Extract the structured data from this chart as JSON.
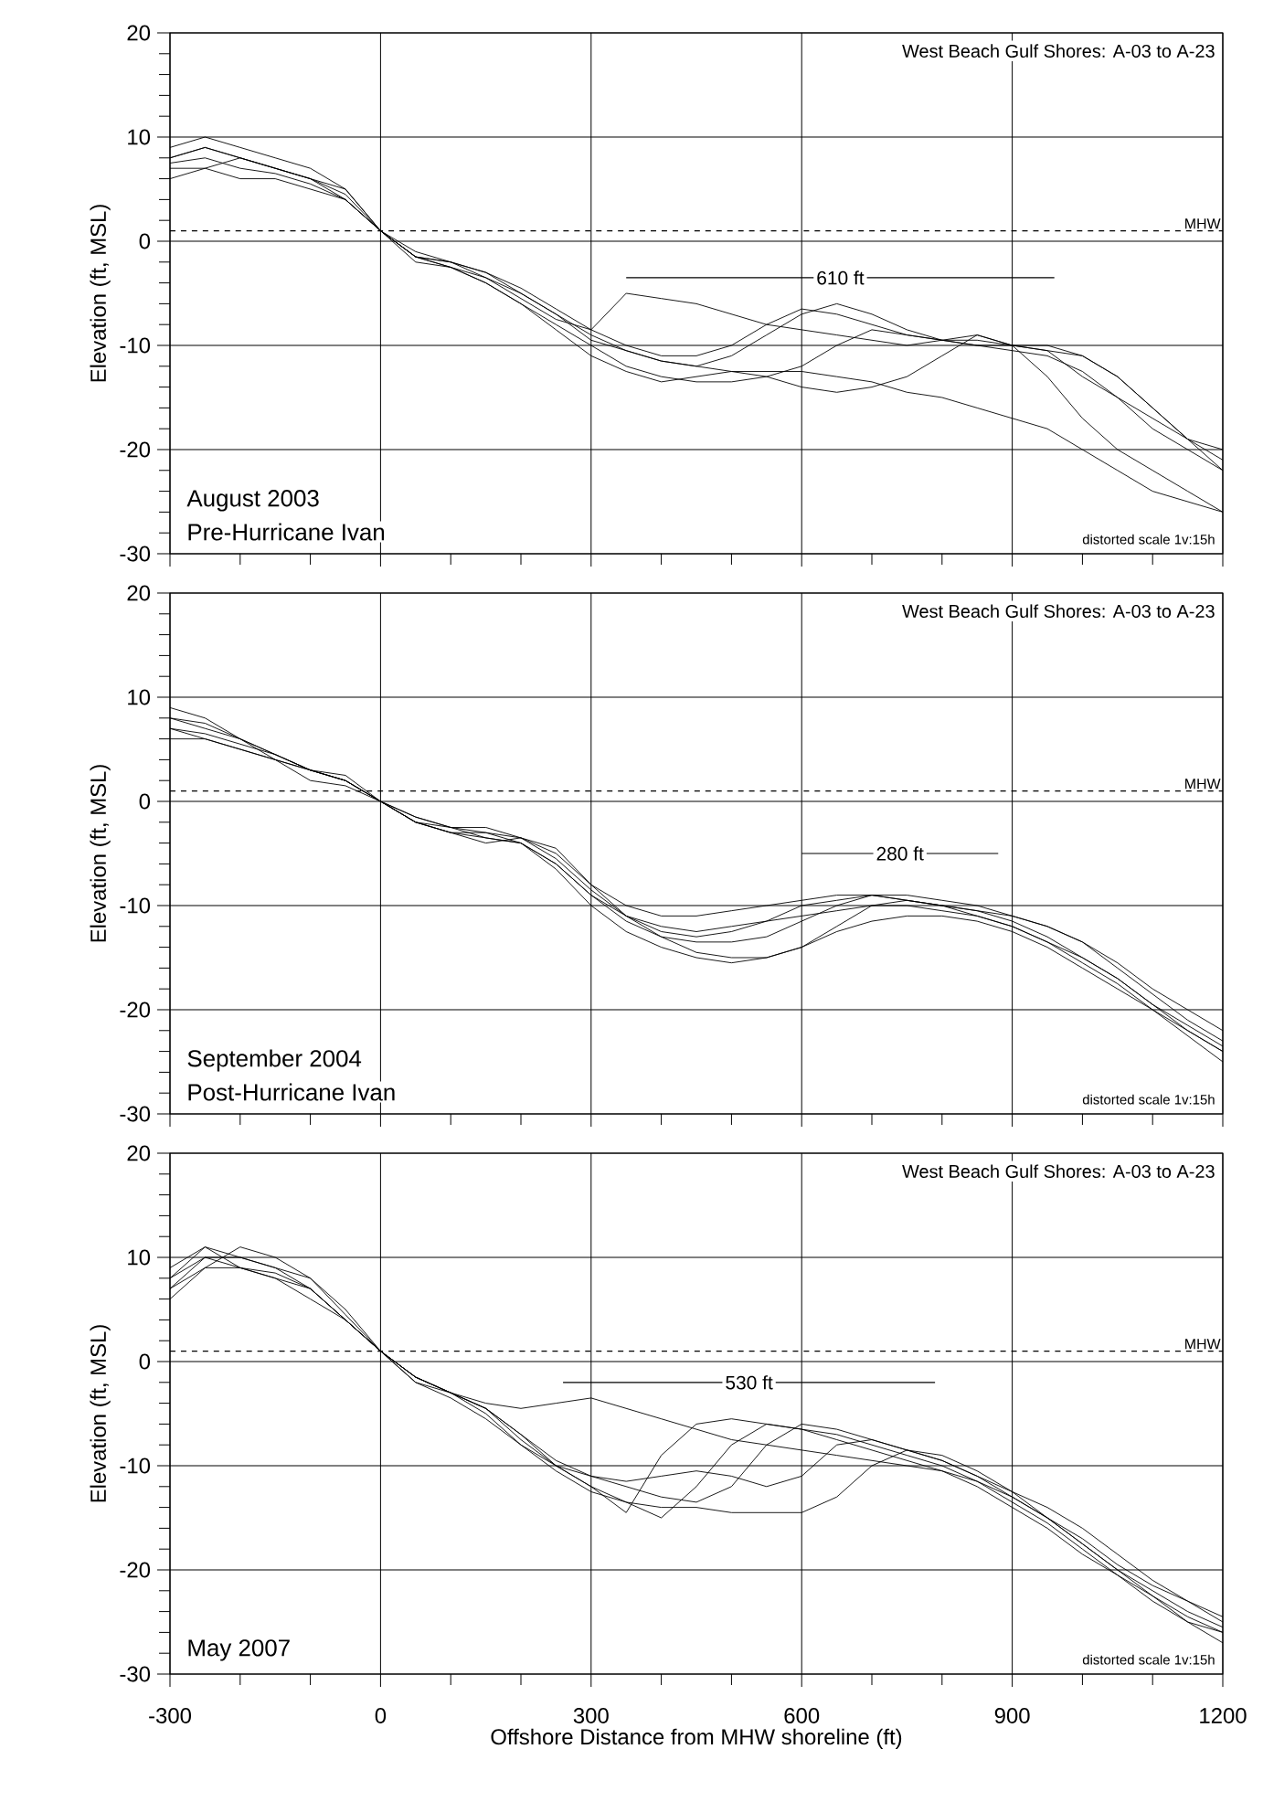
{
  "chart_data": [
    {
      "type": "line",
      "ylabel": "Elevation (ft, MSL)",
      "xlim": [
        -300,
        1200
      ],
      "ylim": [
        -30,
        20
      ],
      "xticks": [
        -300,
        0,
        300,
        600,
        900,
        1200
      ],
      "yticks": [
        -30,
        -20,
        -10,
        0,
        10,
        20
      ],
      "tick_labels": "y",
      "grid": true,
      "marker": "none",
      "line_style": "solid",
      "x": [
        -300,
        -250,
        -200,
        -150,
        -100,
        -50,
        0,
        50,
        100,
        150,
        200,
        250,
        300,
        350,
        400,
        450,
        500,
        550,
        600,
        650,
        700,
        750,
        800,
        850,
        900,
        950,
        1000,
        1050,
        1100,
        1150,
        1200
      ],
      "series": [
        {
          "color": "#000000",
          "values": [
            8,
            9,
            8,
            7,
            6,
            4,
            1,
            -1.5,
            -2.5,
            -3.5,
            -5.5,
            -7.5,
            -8.5,
            -5,
            -5.5,
            -6,
            -7,
            -8,
            -8.5,
            -9,
            -9.5,
            -10,
            -9.5,
            -9,
            -10,
            -10.5,
            -13,
            -15,
            -17,
            -19,
            -21
          ]
        },
        {
          "color": "#000000",
          "values": [
            7,
            7,
            6,
            6,
            5,
            4,
            1,
            -2,
            -2.5,
            -4,
            -6,
            -8,
            -10,
            -12,
            -13,
            -13.5,
            -13.5,
            -13,
            -12,
            -10,
            -8.5,
            -9,
            -9.5,
            -10,
            -10,
            -10,
            -11,
            -13,
            -16,
            -19,
            -22
          ]
        },
        {
          "color": "#000000",
          "values": [
            9,
            10,
            9,
            8,
            7,
            5,
            1,
            -1.5,
            -2,
            -3.5,
            -5,
            -7,
            -9.5,
            -10.5,
            -11.5,
            -12,
            -12.5,
            -13,
            -14,
            -14.5,
            -14,
            -13,
            -11,
            -9,
            -10,
            -13,
            -17,
            -20,
            -22,
            -24,
            -26
          ]
        },
        {
          "color": "#000000",
          "values": [
            6,
            7,
            8,
            7,
            6,
            5,
            1,
            -1.5,
            -2,
            -3,
            -4.5,
            -6.5,
            -8.5,
            -10,
            -11,
            -11,
            -10,
            -8,
            -6.5,
            -7,
            -8,
            -9,
            -9.5,
            -9.5,
            -10,
            -10.5,
            -11,
            -13,
            -16,
            -19,
            -20
          ]
        },
        {
          "color": "#000000",
          "values": [
            7.5,
            8,
            7,
            6.5,
            5.5,
            4,
            1,
            -1.5,
            -2.5,
            -4,
            -6,
            -8.5,
            -11,
            -12.5,
            -13.5,
            -13,
            -12.5,
            -12.5,
            -12.5,
            -13,
            -13.5,
            -14.5,
            -15,
            -16,
            -17,
            -18,
            -20,
            -22,
            -24,
            -25,
            -26
          ]
        },
        {
          "color": "#000000",
          "values": [
            8,
            9,
            8,
            7,
            6,
            4.5,
            1,
            -1,
            -2,
            -3,
            -5,
            -7,
            -9,
            -10.5,
            -11.5,
            -12,
            -11,
            -9,
            -7,
            -6,
            -7,
            -8.5,
            -9.5,
            -10,
            -10.5,
            -11,
            -12.5,
            -15,
            -18,
            -20,
            -22
          ]
        },
        {
          "type": "line",
          "color": "#000000",
          "x": [
            350,
            960
          ],
          "values": [
            -3.5,
            -3.5
          ]
        }
      ],
      "ref_lines": [
        {
          "axis": "y",
          "value": 1,
          "label": "MHW",
          "line_style": "dashed"
        }
      ],
      "annotations": [
        "West Beach Gulf Shores:  A-03 to A-23",
        "August 2003",
        "Pre-Hurricane Ivan",
        "distorted scale 1v:15h",
        {
          "text": "610 ft",
          "x": 655,
          "y": -3.5
        }
      ]
    },
    {
      "type": "line",
      "ylabel": "Elevation (ft, MSL)",
      "xlim": [
        -300,
        1200
      ],
      "ylim": [
        -30,
        20
      ],
      "xticks": [
        -300,
        0,
        300,
        600,
        900,
        1200
      ],
      "yticks": [
        -30,
        -20,
        -10,
        0,
        10,
        20
      ],
      "tick_labels": "y",
      "grid": true,
      "marker": "none",
      "line_style": "solid",
      "x": [
        -300,
        -250,
        -200,
        -150,
        -100,
        -50,
        0,
        50,
        100,
        150,
        200,
        250,
        300,
        350,
        400,
        450,
        500,
        550,
        600,
        650,
        700,
        750,
        800,
        850,
        900,
        950,
        1000,
        1050,
        1100,
        1150,
        1200
      ],
      "series": [
        {
          "color": "#000000",
          "values": [
            8,
            7,
            6,
            4.5,
            3,
            2,
            0,
            -2,
            -3,
            -3.5,
            -4,
            -6,
            -9,
            -11,
            -12.5,
            -13,
            -12.5,
            -11.5,
            -10,
            -9.5,
            -9,
            -9.5,
            -10,
            -10.5,
            -11,
            -12,
            -13.5,
            -16,
            -18.5,
            -21,
            -23
          ]
        },
        {
          "color": "#000000",
          "values": [
            7,
            6,
            5,
            4,
            3,
            2,
            0,
            -1.5,
            -2.5,
            -3,
            -3.5,
            -5,
            -8,
            -11,
            -13,
            -14.5,
            -15,
            -15,
            -14,
            -12.5,
            -11.5,
            -11,
            -11,
            -11.5,
            -12.5,
            -14,
            -16,
            -18,
            -20,
            -22,
            -24
          ]
        },
        {
          "color": "#000000",
          "values": [
            9,
            8,
            6,
            4.5,
            3,
            2.5,
            0,
            -2,
            -3,
            -4,
            -3.5,
            -4.5,
            -8,
            -10,
            -11,
            -11,
            -10.5,
            -10,
            -9.5,
            -9,
            -9,
            -9.5,
            -10,
            -10.5,
            -11.5,
            -13,
            -15,
            -17,
            -19.5,
            -22,
            -24
          ]
        },
        {
          "color": "#000000",
          "values": [
            6,
            6,
            5,
            4,
            2,
            1.5,
            0,
            -2,
            -3,
            -3,
            -4,
            -6.5,
            -10,
            -12.5,
            -14,
            -15,
            -15.5,
            -15,
            -14,
            -12,
            -10,
            -9.5,
            -10,
            -11,
            -12,
            -13.5,
            -15.5,
            -17.5,
            -20,
            -22.5,
            -25
          ]
        },
        {
          "color": "#000000",
          "values": [
            8,
            7.5,
            6,
            4,
            3,
            2,
            0,
            -2,
            -2.5,
            -3.5,
            -4,
            -6,
            -9,
            -11.5,
            -13,
            -13.5,
            -13.5,
            -13,
            -11.5,
            -10,
            -9,
            -9,
            -9.5,
            -10,
            -11,
            -12,
            -13.5,
            -15.5,
            -18,
            -20,
            -22
          ]
        },
        {
          "color": "#000000",
          "values": [
            7,
            6.5,
            5.5,
            4.5,
            3,
            2,
            0,
            -1.5,
            -2.5,
            -2.5,
            -3.5,
            -5.5,
            -8.5,
            -11,
            -12,
            -12.5,
            -12,
            -11.5,
            -11,
            -10.5,
            -10,
            -10,
            -10.5,
            -11,
            -12,
            -13.5,
            -15,
            -17,
            -19.5,
            -21.5,
            -23.5
          ]
        },
        {
          "type": "line",
          "color": "#000000",
          "x": [
            600,
            880
          ],
          "values": [
            -5,
            -5
          ]
        }
      ],
      "ref_lines": [
        {
          "axis": "y",
          "value": 1,
          "label": "MHW",
          "line_style": "dashed"
        }
      ],
      "annotations": [
        "West Beach Gulf Shores:  A-03 to A-23",
        "September 2004",
        "Post-Hurricane Ivan",
        "distorted scale 1v:15h",
        {
          "text": "280 ft",
          "x": 740,
          "y": -5
        }
      ]
    },
    {
      "type": "line",
      "ylabel": "Elevation (ft, MSL)",
      "xlabel": "Offshore Distance from MHW shoreline (ft)",
      "xlim": [
        -300,
        1200
      ],
      "ylim": [
        -30,
        20
      ],
      "xticks": [
        -300,
        0,
        300,
        600,
        900,
        1200
      ],
      "yticks": [
        -30,
        -20,
        -10,
        0,
        10,
        20
      ],
      "grid": true,
      "marker": "none",
      "line_style": "solid",
      "x": [
        -300,
        -250,
        -200,
        -150,
        -100,
        -50,
        0,
        50,
        100,
        150,
        200,
        250,
        300,
        350,
        400,
        450,
        500,
        550,
        600,
        650,
        700,
        750,
        800,
        850,
        900,
        950,
        1000,
        1050,
        1100,
        1150,
        1200
      ],
      "series": [
        {
          "color": "#000000",
          "values": [
            8,
            10,
            10,
            9,
            7,
            4,
            1,
            -1.5,
            -3,
            -4,
            -4.5,
            -4,
            -3.5,
            -4.5,
            -5.5,
            -6.5,
            -7.5,
            -8,
            -8.5,
            -9,
            -9.5,
            -10,
            -10.5,
            -11.5,
            -13,
            -15,
            -17,
            -19.5,
            -21.5,
            -23,
            -25
          ]
        },
        {
          "color": "#000000",
          "values": [
            7,
            10,
            9,
            8,
            7,
            4,
            1,
            -1.5,
            -3,
            -4.5,
            -7,
            -10,
            -12,
            -14.5,
            -9,
            -6,
            -5.5,
            -6,
            -6.5,
            -7.5,
            -8.5,
            -9.5,
            -10.5,
            -12,
            -14,
            -16,
            -18.5,
            -20.5,
            -22.5,
            -24.5,
            -26
          ]
        },
        {
          "color": "#000000",
          "values": [
            9,
            11,
            9,
            8.5,
            7,
            4,
            1,
            -2,
            -3,
            -5,
            -8,
            -10,
            -11,
            -12,
            -13,
            -13.5,
            -12,
            -8,
            -6,
            -6.5,
            -7.5,
            -8.5,
            -9.5,
            -11,
            -13,
            -15,
            -17.5,
            -20,
            -22,
            -24,
            -25.5
          ]
        },
        {
          "color": "#000000",
          "values": [
            6,
            9,
            11,
            10,
            8,
            5,
            1,
            -2,
            -3.5,
            -5.5,
            -8,
            -10.5,
            -12.5,
            -13.5,
            -14,
            -14,
            -14.5,
            -14.5,
            -14.5,
            -13,
            -10,
            -8.5,
            -9,
            -10.5,
            -12.5,
            -15,
            -17.5,
            -20,
            -22.5,
            -25,
            -27
          ]
        },
        {
          "color": "#000000",
          "values": [
            8,
            11,
            10,
            9,
            8,
            4.5,
            1,
            -1.5,
            -3,
            -4.5,
            -7,
            -9.5,
            -11,
            -11.5,
            -11,
            -10.5,
            -11,
            -12,
            -11,
            -8,
            -7.5,
            -8.5,
            -9.5,
            -11,
            -12.5,
            -14,
            -16,
            -18.5,
            -21,
            -23,
            -24.5
          ]
        },
        {
          "color": "#000000",
          "values": [
            7,
            9,
            9,
            8,
            6,
            4,
            1,
            -1.5,
            -3,
            -4.5,
            -7.5,
            -10,
            -12,
            -13.5,
            -15,
            -12,
            -8,
            -6,
            -6.5,
            -7,
            -8,
            -9,
            -10,
            -11.5,
            -13.5,
            -15.5,
            -18,
            -20.5,
            -23,
            -25,
            -26
          ]
        },
        {
          "type": "line",
          "color": "#000000",
          "x": [
            260,
            790
          ],
          "values": [
            -2,
            -2
          ]
        }
      ],
      "ref_lines": [
        {
          "axis": "y",
          "value": 1,
          "label": "MHW",
          "line_style": "dashed"
        }
      ],
      "annotations": [
        "West Beach Gulf Shores:  A-03 to A-23",
        "May 2007",
        "distorted scale 1v:15h",
        {
          "text": "530 ft",
          "x": 525,
          "y": -2
        }
      ]
    }
  ]
}
